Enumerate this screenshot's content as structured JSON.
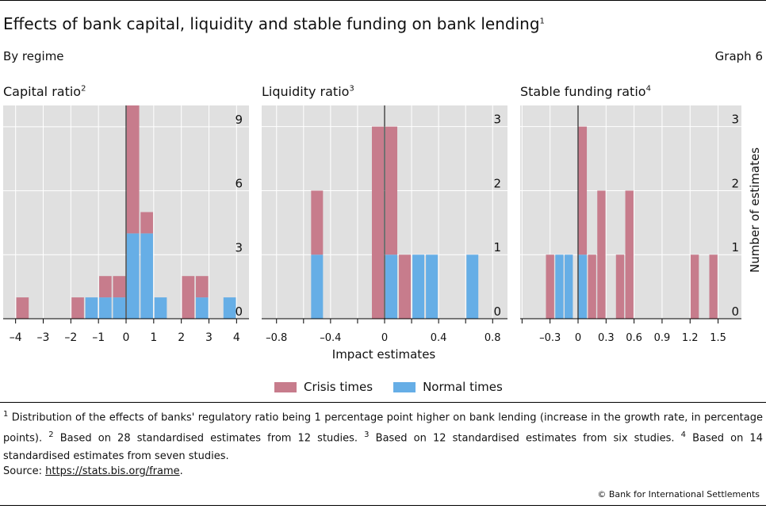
{
  "title": "Effects of bank capital, liquidity and stable funding on bank lending",
  "title_sup": "1",
  "subtitle": "By regime",
  "graph_label": "Graph 6",
  "colors": {
    "crisis": "#c77c8c",
    "normal": "#66aee6",
    "plot_bg": "#e0e0e0"
  },
  "legend": [
    {
      "label": "Crisis times",
      "color": "#c77c8c"
    },
    {
      "label": "Normal times",
      "color": "#66aee6"
    }
  ],
  "xlabel": "Impact estimates",
  "ylabel": "Number of estimates",
  "chart_data": [
    {
      "type": "bar",
      "stacked": true,
      "title": "Capital ratio",
      "title_sup": "2",
      "x_ticks": [
        -4,
        -3,
        -2,
        -1,
        0,
        1,
        2,
        3,
        4
      ],
      "x_tick_labels": [
        "–4",
        "–3",
        "–2",
        "–1",
        "0",
        "1",
        "2",
        "3",
        "4"
      ],
      "xlim": [
        -4.45,
        4.45
      ],
      "y_ticks": [
        0,
        3,
        6,
        9
      ],
      "ylim": [
        0,
        10
      ],
      "bar_width": 0.45,
      "bars": [
        {
          "x": -3.75,
          "normal": 0,
          "crisis": 1
        },
        {
          "x": -1.75,
          "normal": 0,
          "crisis": 1
        },
        {
          "x": -1.25,
          "normal": 1,
          "crisis": 0
        },
        {
          "x": -0.75,
          "normal": 1,
          "crisis": 1
        },
        {
          "x": -0.25,
          "normal": 1,
          "crisis": 1
        },
        {
          "x": 0.25,
          "normal": 4,
          "crisis": 6
        },
        {
          "x": 0.75,
          "normal": 4,
          "crisis": 1
        },
        {
          "x": 1.25,
          "normal": 1,
          "crisis": 0
        },
        {
          "x": 2.25,
          "normal": 0,
          "crisis": 2
        },
        {
          "x": 2.75,
          "normal": 1,
          "crisis": 1
        },
        {
          "x": 3.75,
          "normal": 1,
          "crisis": 0
        }
      ]
    },
    {
      "type": "bar",
      "stacked": true,
      "title": "Liquidity ratio",
      "title_sup": "3",
      "x_ticks": [
        -0.8,
        -0.6,
        -0.4,
        -0.2,
        0,
        0.2,
        0.4,
        0.6,
        0.8
      ],
      "x_tick_labels": [
        "–0.8",
        "",
        "–0.4",
        "",
        "0",
        "",
        "0.4",
        "",
        "0.8"
      ],
      "xlim": [
        -0.91,
        0.91
      ],
      "y_ticks": [
        0,
        1,
        2,
        3
      ],
      "ylim": [
        0,
        3.33
      ],
      "bar_width": 0.088,
      "bars": [
        {
          "x": -0.5,
          "normal": 1,
          "crisis": 1
        },
        {
          "x": -0.05,
          "normal": 0,
          "crisis": 3
        },
        {
          "x": 0.05,
          "normal": 1,
          "crisis": 2
        },
        {
          "x": 0.15,
          "normal": 0,
          "crisis": 1
        },
        {
          "x": 0.25,
          "normal": 1,
          "crisis": 0
        },
        {
          "x": 0.35,
          "normal": 1,
          "crisis": 0
        },
        {
          "x": 0.65,
          "normal": 1,
          "crisis": 0
        }
      ]
    },
    {
      "type": "bar",
      "stacked": true,
      "title": "Stable funding ratio",
      "title_sup": "4",
      "x_ticks": [
        -0.6,
        -0.3,
        0,
        0.3,
        0.6,
        0.9,
        1.2,
        1.5
      ],
      "x_tick_labels": [
        "",
        "–0.3",
        "0",
        "0.3",
        "0.6",
        "0.9",
        "1.2",
        "1.5"
      ],
      "xlim": [
        -0.62,
        1.75
      ],
      "y_ticks": [
        0,
        1,
        2,
        3
      ],
      "ylim": [
        0,
        3.33
      ],
      "bar_width": 0.088,
      "bars": [
        {
          "x": -0.3,
          "normal": 0,
          "crisis": 1
        },
        {
          "x": -0.2,
          "normal": 1,
          "crisis": 0
        },
        {
          "x": -0.1,
          "normal": 1,
          "crisis": 0
        },
        {
          "x": 0.05,
          "normal": 1,
          "crisis": 2
        },
        {
          "x": 0.15,
          "normal": 0,
          "crisis": 1
        },
        {
          "x": 0.25,
          "normal": 0,
          "crisis": 2
        },
        {
          "x": 0.45,
          "normal": 0,
          "crisis": 1
        },
        {
          "x": 0.55,
          "normal": 0,
          "crisis": 2
        },
        {
          "x": 1.25,
          "normal": 0,
          "crisis": 1
        },
        {
          "x": 1.45,
          "normal": 0,
          "crisis": 1
        }
      ]
    }
  ],
  "footnotes": {
    "n1": "1",
    "t1": " Distribution of the effects of banks' regulatory ratio being 1 percentage point higher on bank lending (increase in the growth rate, in percentage points).",
    "n2": "2",
    "t2": " Based on 28 standardised estimates from 12 studies.",
    "n3": "3",
    "t3": " Based on 12 standardised estimates from six studies.",
    "n4": "4",
    "t4": " Based on 14 standardised estimates from seven studies."
  },
  "source": {
    "label": "Source: ",
    "url": "https://stats.bis.org/frame",
    "suffix": "."
  },
  "copyright": "© Bank for International Settlements"
}
